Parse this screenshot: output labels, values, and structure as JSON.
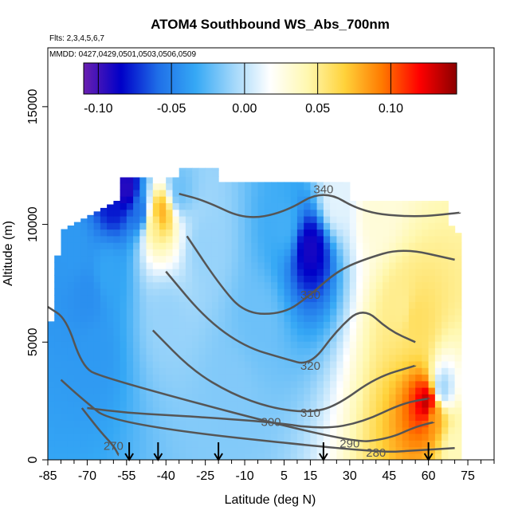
{
  "chart_data": {
    "type": "heatmap",
    "title": "ATOM4 Southbound WS_Abs_700nm",
    "flights_label": "Flts: 2,3,4,5,6,7",
    "mmdd_label": "MMDD: 0427,0429,0501,0503,0506,0509",
    "xlabel": "Latitude (deg N)",
    "ylabel": "Altitude (m)",
    "xlim": [
      -85,
      85
    ],
    "ylim": [
      0,
      17500
    ],
    "x_ticks": [
      -85,
      -70,
      -55,
      -40,
      -25,
      -10,
      5,
      15,
      30,
      45,
      60,
      75
    ],
    "x_tick_labels": [
      "-85",
      "-70",
      "-55",
      "-40",
      "-25",
      "-10",
      "5",
      "15",
      "30",
      "45",
      "60",
      "75"
    ],
    "y_ticks": [
      0,
      5000,
      10000,
      15000
    ],
    "y_tick_labels": [
      "0",
      "5000",
      "10000",
      "15000"
    ],
    "colorbar": {
      "range": [
        -0.11,
        0.145
      ],
      "ticks": [
        -0.1,
        -0.05,
        0.0,
        0.05,
        0.1
      ],
      "tick_labels": [
        "-0.10",
        "-0.05",
        "0.00",
        "0.05",
        "0.10"
      ],
      "colors": [
        "#6a1fb0",
        "#0000c8",
        "#1f6fe8",
        "#35a8f5",
        "#9fd6fa",
        "#ffffff",
        "#fff8b0",
        "#ffd23a",
        "#ff7a00",
        "#ff0000",
        "#8b0000"
      ]
    },
    "profile_latitudes": [
      -54,
      -43,
      -20,
      20,
      60
    ],
    "cells": [
      {
        "lat": -75,
        "alt": 9000,
        "value": -0.04
      },
      {
        "lat": -70,
        "alt": 7000,
        "value": -0.045
      },
      {
        "lat": -67,
        "alt": 4500,
        "value": -0.04
      },
      {
        "lat": -62,
        "alt": 8000,
        "value": -0.035
      },
      {
        "lat": -60,
        "alt": 11000,
        "value": -0.08
      },
      {
        "lat": -55,
        "alt": 11500,
        "value": -0.095
      },
      {
        "lat": -50,
        "alt": 10500,
        "value": -0.06
      },
      {
        "lat": -45,
        "alt": 10000,
        "value": 0.05
      },
      {
        "lat": -42,
        "alt": 10500,
        "value": 0.08
      },
      {
        "lat": -40,
        "alt": 6000,
        "value": -0.01
      },
      {
        "lat": -35,
        "alt": 11500,
        "value": -0.02
      },
      {
        "lat": -25,
        "alt": 9000,
        "value": -0.01
      },
      {
        "lat": -15,
        "alt": 3000,
        "value": -0.015
      },
      {
        "lat": -5,
        "alt": 6000,
        "value": -0.02
      },
      {
        "lat": 5,
        "alt": 10000,
        "value": -0.03
      },
      {
        "lat": 15,
        "alt": 9000,
        "value": -0.09
      },
      {
        "lat": 25,
        "alt": 11000,
        "value": 0.01
      },
      {
        "lat": 40,
        "alt": 10500,
        "value": 0.03
      },
      {
        "lat": 50,
        "alt": 6500,
        "value": 0.05
      },
      {
        "lat": 55,
        "alt": 6000,
        "value": 0.06
      },
      {
        "lat": 60,
        "alt": 2400,
        "value": 0.14
      },
      {
        "lat": 62,
        "alt": 2000,
        "value": 0.08
      },
      {
        "lat": 65,
        "alt": 3000,
        "value": -0.01
      },
      {
        "lat": 70,
        "alt": 500,
        "value": 0.04
      }
    ],
    "contours": [
      {
        "label": "340",
        "points": [
          [
            -35,
            11300
          ],
          [
            -25,
            11000
          ],
          [
            -10,
            10200
          ],
          [
            5,
            10500
          ],
          [
            20,
            11500
          ],
          [
            35,
            10500
          ],
          [
            55,
            10300
          ],
          [
            72,
            10500
          ]
        ]
      },
      {
        "label": "330",
        "points": [
          [
            -32,
            9500
          ],
          [
            -20,
            7500
          ],
          [
            -10,
            6200
          ],
          [
            5,
            6200
          ],
          [
            15,
            7000
          ],
          [
            25,
            8000
          ],
          [
            35,
            8500
          ],
          [
            50,
            9000
          ],
          [
            70,
            8500
          ]
        ]
      },
      {
        "label": "320",
        "points": [
          [
            -40,
            8000
          ],
          [
            -25,
            6000
          ],
          [
            -10,
            4800
          ],
          [
            5,
            4300
          ],
          [
            15,
            4000
          ],
          [
            25,
            5500
          ],
          [
            35,
            6500
          ],
          [
            45,
            5500
          ],
          [
            55,
            5000
          ]
        ]
      },
      {
        "label": "310",
        "points": [
          [
            -45,
            5500
          ],
          [
            -30,
            3800
          ],
          [
            -15,
            2800
          ],
          [
            0,
            2200
          ],
          [
            15,
            2000
          ],
          [
            25,
            2300
          ],
          [
            40,
            3500
          ],
          [
            55,
            4000
          ]
        ]
      },
      {
        "label": "300",
        "points": [
          [
            -70,
            2200
          ],
          [
            -55,
            2000
          ],
          [
            -40,
            1900
          ],
          [
            -25,
            1800
          ],
          [
            0,
            1600
          ],
          [
            20,
            1300
          ],
          [
            35,
            1600
          ],
          [
            50,
            2400
          ],
          [
            60,
            2600
          ]
        ]
      },
      {
        "label": "290",
        "points": [
          [
            -85,
            6500
          ],
          [
            -78,
            6000
          ],
          [
            -72,
            4000
          ],
          [
            -65,
            3500
          ],
          [
            30,
            700
          ],
          [
            45,
            900
          ],
          [
            55,
            1400
          ],
          [
            62,
            1600
          ]
        ]
      },
      {
        "label": "280",
        "points": [
          [
            -80,
            3400
          ],
          [
            -72,
            2600
          ],
          [
            -60,
            1500
          ],
          [
            40,
            300
          ],
          [
            55,
            400
          ],
          [
            70,
            500
          ]
        ]
      },
      {
        "label": "270",
        "points": [
          [
            -72,
            2200
          ],
          [
            -65,
            1200
          ],
          [
            -60,
            600
          ],
          [
            -58,
            200
          ]
        ]
      }
    ]
  }
}
